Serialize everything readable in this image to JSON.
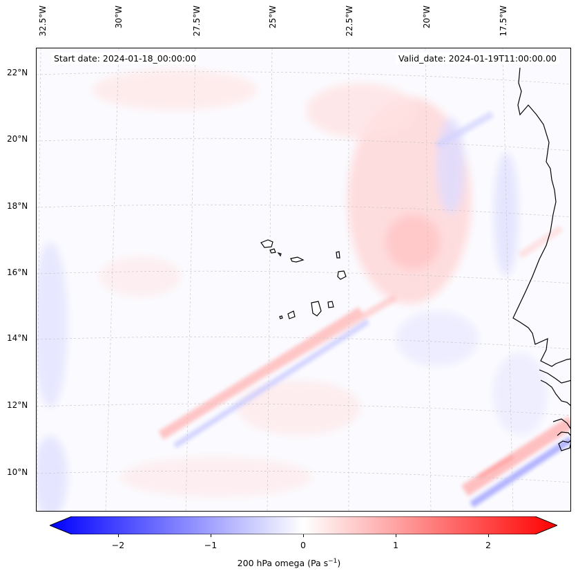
{
  "map": {
    "start_date": "Start date: 2024-01-18_00:00:00",
    "valid_date": "Valid_date: 2024-01-19T11:00:00.00",
    "lon_labels": [
      "32.5°W",
      "30°W",
      "27.5°W",
      "25°W",
      "22.5°W",
      "20°W",
      "17.5°W"
    ],
    "lat_labels": [
      "22°N",
      "20°N",
      "18°N",
      "16°N",
      "14°N",
      "12°N",
      "10°N"
    ],
    "field": "200 hPa omega",
    "unit": "Pa s",
    "unit_exponent": "−1",
    "colors": {
      "negative": "#0000ff",
      "positive": "#ff0000",
      "neutral": "#ffffff",
      "coast": "#000000"
    }
  },
  "colorbar": {
    "ticks": [
      "−2",
      "−1",
      "0",
      "1",
      "2"
    ],
    "range": [
      -2.6,
      2.6
    ]
  }
}
